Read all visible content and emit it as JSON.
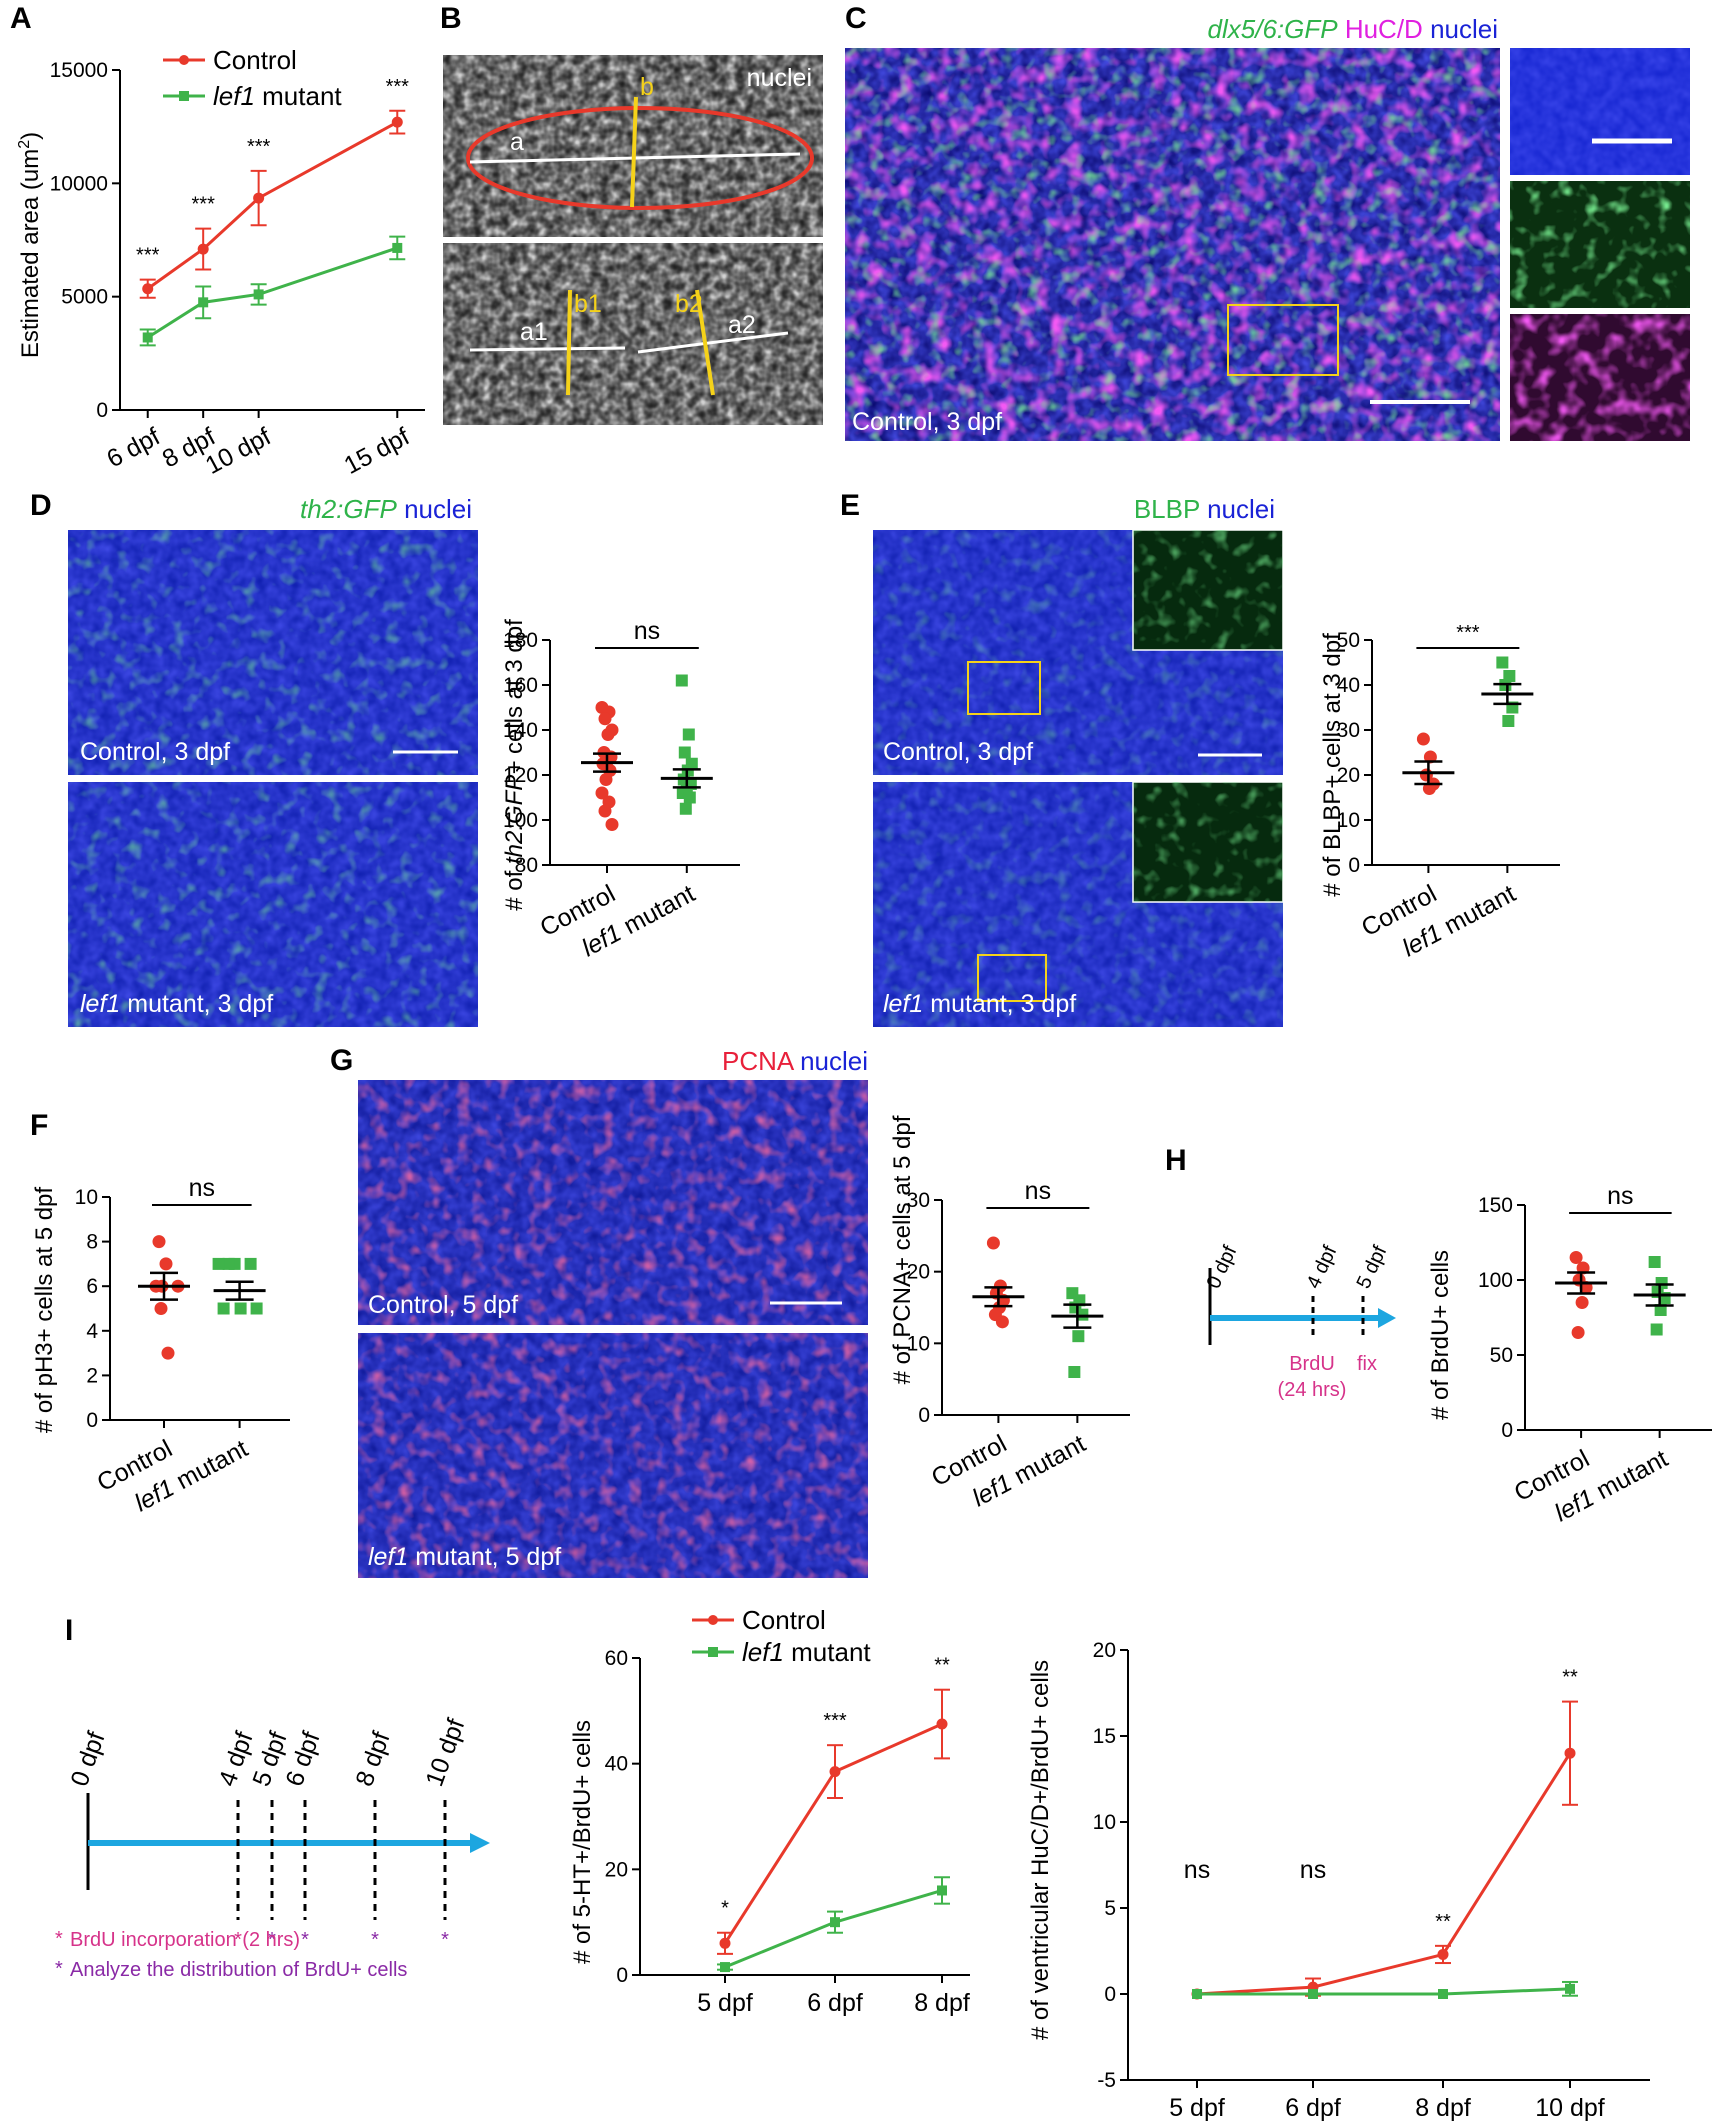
{
  "colors": {
    "control": "#e8392b",
    "mutant": "#3fb34a",
    "arrow": "#1da6e0",
    "nuclei": "#1a23d6",
    "huc": "#e020e0",
    "gfp": "#2fd34a",
    "pcna": "#ff2050",
    "brdu_label": "#d6338a",
    "analyze_label": "#8a2aa6",
    "scale_box": "#f5d21a"
  },
  "panel_labels": {
    "A": "A",
    "B": "B",
    "C": "C",
    "D": "D",
    "E": "E",
    "F": "F",
    "G": "G",
    "H": "H",
    "I": "I"
  },
  "legend": {
    "control": "Control",
    "mutant_italic": "lef1",
    "mutant_rest": " mutant"
  },
  "groups": {
    "control": "Control",
    "mutant_italic": "lef1",
    "mutant_rest": " mutant"
  },
  "ns": "ns",
  "micro": {
    "B": {
      "tag": "nuclei",
      "a": "a",
      "b": "b",
      "a1": "a1",
      "b1": "b1",
      "a2": "a2",
      "b2": "b2"
    },
    "C": {
      "title_1": "dlx5/6:GFP",
      "title_2": " HuC/D",
      "title_3": " nuclei",
      "cap": "Control, 3 dpf"
    },
    "D": {
      "title_1": "th2:GFP",
      "title_2": " nuclei",
      "cap_top": "Control, 3 dpf",
      "cap_bot_italic": "lef1",
      "cap_bot_rest": " mutant, 3 dpf"
    },
    "E": {
      "title_1": "BLBP",
      "title_2": " nuclei",
      "cap_top": "Control, 3 dpf",
      "cap_bot_italic": "lef1",
      "cap_bot_rest": " mutant, 3 dpf"
    },
    "G": {
      "title_1": "PCNA",
      "title_2": " nuclei",
      "cap_top": "Control, 5 dpf",
      "cap_bot_italic": "lef1",
      "cap_bot_rest": " mutant, 5 dpf"
    }
  },
  "timeline_H": {
    "t0": "0 dpf",
    "t1": "4 dpf",
    "t2": "5 dpf",
    "brdu": "BrdU",
    "fix": "fix",
    "dur": "(24 hrs)"
  },
  "timeline_I": {
    "ticks": [
      "0 dpf",
      "4 dpf",
      "5 dpf",
      "6 dpf",
      "8 dpf",
      "10 dpf"
    ],
    "legend1": "BrdU incorporation (2 hrs)",
    "legend2": "Analyze the distribution of BrdU+ cells",
    "star": "*"
  },
  "chart_data": [
    {
      "panel": "A",
      "type": "line",
      "ylabel_main": "Estimated area (um",
      "ylabel_sup": "2",
      "ylabel_end": ")",
      "x_ticks": [
        "6 dpf",
        "8 dpf",
        "10 dpf",
        "15 dpf"
      ],
      "x": [
        6,
        8,
        10,
        15
      ],
      "xlim": [
        5,
        16
      ],
      "ylim": [
        0,
        15000
      ],
      "y_ticks": [
        "0",
        "5000",
        "10000",
        "15000"
      ],
      "y_tick_values": [
        0,
        5000,
        10000,
        15000
      ],
      "series": [
        {
          "name": "Control",
          "mean": [
            5350,
            7100,
            9350,
            12700
          ],
          "sem": [
            400,
            900,
            1200,
            500
          ]
        },
        {
          "name": "lef1 mutant",
          "mean": [
            3200,
            4750,
            5100,
            7150
          ],
          "sem": [
            350,
            700,
            450,
            500
          ]
        }
      ],
      "significance": [
        "***",
        "***",
        "***",
        "***"
      ]
    },
    {
      "panel": "D",
      "type": "scatter",
      "ylabel_pre": "# of ",
      "ylabel_italic": "th2:GFP+",
      "ylabel_post": " cells at 3 dpf",
      "ylim": [
        80,
        180
      ],
      "y_ticks": [
        "80",
        "100",
        "120",
        "140",
        "160",
        "180"
      ],
      "y_tick_values": [
        80,
        100,
        120,
        140,
        160,
        180
      ],
      "categories": [
        "Control",
        "lef1 mutant"
      ],
      "series": [
        {
          "name": "Control",
          "points": [
            150,
            148,
            145,
            140,
            138,
            130,
            128,
            126,
            125,
            122,
            118,
            112,
            108,
            104,
            98
          ],
          "mean": 125.5,
          "sem": 4.0
        },
        {
          "name": "lef1 mutant",
          "points": [
            162,
            138,
            130,
            125,
            122,
            118,
            116,
            115,
            112,
            110,
            105
          ],
          "mean": 118.5,
          "sem": 4.0
        }
      ],
      "significance": "ns"
    },
    {
      "panel": "E",
      "type": "scatter",
      "ylabel": "# of BLBP+ cells at 3 dpf",
      "ylim": [
        0,
        50
      ],
      "y_ticks": [
        "0",
        "10",
        "20",
        "30",
        "40",
        "50"
      ],
      "y_tick_values": [
        0,
        10,
        20,
        30,
        40,
        50
      ],
      "categories": [
        "Control",
        "lef1 mutant"
      ],
      "series": [
        {
          "name": "Control",
          "points": [
            28,
            24,
            20,
            18,
            17
          ],
          "mean": 20.5,
          "sem": 2.5
        },
        {
          "name": "lef1 mutant",
          "points": [
            45,
            42,
            40,
            35,
            32
          ],
          "mean": 38,
          "sem": 2.2
        }
      ],
      "significance": "***"
    },
    {
      "panel": "F",
      "type": "scatter",
      "ylabel": "# of pH3+ cells at 5 dpf",
      "ylim": [
        0,
        10
      ],
      "y_ticks": [
        "0",
        "2",
        "4",
        "6",
        "8",
        "10"
      ],
      "y_tick_values": [
        0,
        2,
        4,
        6,
        8,
        10
      ],
      "categories": [
        "Control",
        "lef1 mutant"
      ],
      "series": [
        {
          "name": "Control",
          "points": [
            8,
            7,
            6,
            6,
            6,
            5,
            3
          ],
          "mean": 6.0,
          "sem": 0.6
        },
        {
          "name": "lef1 mutant",
          "points": [
            7,
            7,
            7,
            7,
            5,
            5,
            5
          ],
          "mean": 5.8,
          "sem": 0.4
        }
      ],
      "significance": "ns"
    },
    {
      "panel": "G",
      "type": "scatter",
      "ylabel": "# of PCNA+ cells at 5 dpf",
      "ylim": [
        0,
        30
      ],
      "y_ticks": [
        "0",
        "10",
        "20",
        "30"
      ],
      "y_tick_values": [
        0,
        10,
        20,
        30
      ],
      "categories": [
        "Control",
        "lef1 mutant"
      ],
      "series": [
        {
          "name": "Control",
          "points": [
            24,
            18,
            17,
            16,
            15,
            14,
            13
          ],
          "mean": 16.5,
          "sem": 1.3
        },
        {
          "name": "lef1 mutant",
          "points": [
            17,
            16,
            15,
            14,
            11,
            6
          ],
          "mean": 13.8,
          "sem": 1.6
        }
      ],
      "significance": "ns"
    },
    {
      "panel": "H",
      "type": "scatter",
      "ylabel": "# of BrdU+ cells",
      "ylim": [
        0,
        150
      ],
      "y_ticks": [
        "0",
        "50",
        "100",
        "150"
      ],
      "y_tick_values": [
        0,
        50,
        100,
        150
      ],
      "categories": [
        "Control",
        "lef1 mutant"
      ],
      "series": [
        {
          "name": "Control",
          "points": [
            115,
            108,
            100,
            95,
            85,
            65
          ],
          "mean": 98,
          "sem": 7
        },
        {
          "name": "lef1 mutant",
          "points": [
            112,
            98,
            92,
            88,
            80,
            67
          ],
          "mean": 90,
          "sem": 7
        }
      ],
      "significance": "ns"
    },
    {
      "panel": "I-middle",
      "type": "line",
      "ylabel": "# of 5-HT+/BrdU+ cells",
      "x_ticks": [
        "5 dpf",
        "6 dpf",
        "8 dpf"
      ],
      "ylim": [
        0,
        60
      ],
      "y_ticks": [
        "0",
        "20",
        "40",
        "60"
      ],
      "y_tick_values": [
        0,
        20,
        40,
        60
      ],
      "series": [
        {
          "name": "Control",
          "mean": [
            6,
            38.5,
            47.5
          ],
          "sem": [
            2,
            5,
            6.5
          ]
        },
        {
          "name": "lef1 mutant",
          "mean": [
            1.5,
            10,
            16
          ],
          "sem": [
            0.5,
            2,
            2.5
          ]
        }
      ],
      "significance": [
        "*",
        "***",
        "**"
      ]
    },
    {
      "panel": "I-right",
      "type": "line",
      "ylabel": "# of ventricular HuC/D+/BrdU+ cells",
      "x_ticks": [
        "5 dpf",
        "6 dpf",
        "8 dpf",
        "10 dpf"
      ],
      "ylim": [
        -5,
        20
      ],
      "y_ticks": [
        "-5",
        "0",
        "5",
        "10",
        "15",
        "20"
      ],
      "y_tick_values": [
        -5,
        0,
        5,
        10,
        15,
        20
      ],
      "series": [
        {
          "name": "Control",
          "mean": [
            0,
            0.4,
            2.3,
            14
          ],
          "sem": [
            0,
            0.5,
            0.5,
            3
          ]
        },
        {
          "name": "lef1 mutant",
          "mean": [
            0,
            0,
            0,
            0.3
          ],
          "sem": [
            0,
            0,
            0,
            0.4
          ]
        }
      ],
      "significance": [
        "ns",
        "ns",
        "**",
        "**"
      ]
    }
  ]
}
